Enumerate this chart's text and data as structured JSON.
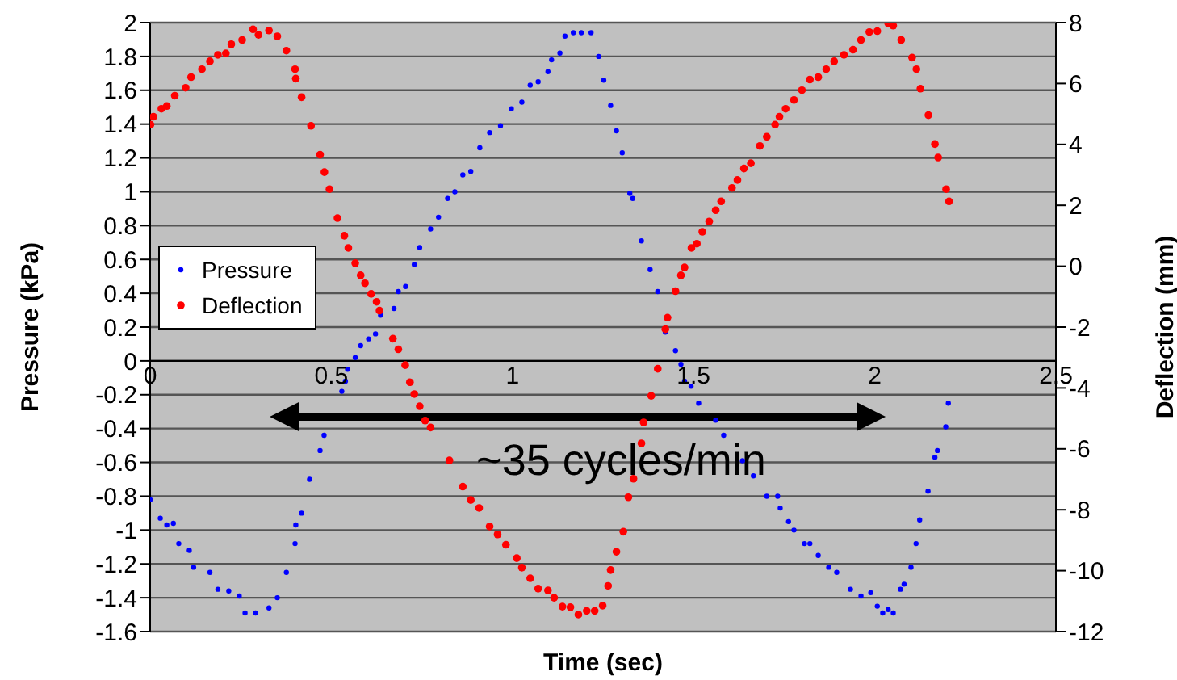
{
  "chart_data": {
    "type": "scatter",
    "xlabel": "Time (sec)",
    "ylabel": "Pressure (kPa)",
    "y2label": "Deflection (mm)",
    "xlim": [
      0,
      2.5
    ],
    "xticks": [
      0,
      0.5,
      1,
      1.5,
      2,
      2.5
    ],
    "ylim": [
      -1.6,
      2
    ],
    "yticks": [
      -1.6,
      -1.4,
      -1.2,
      -1,
      -0.8,
      -0.6,
      -0.4,
      -0.2,
      0,
      0.2,
      0.4,
      0.6,
      0.8,
      1,
      1.2,
      1.4,
      1.6,
      1.8,
      2
    ],
    "y2lim": [
      -12,
      8
    ],
    "y2ticks": [
      -12,
      -10,
      -8,
      -6,
      -4,
      -2,
      0,
      2,
      4,
      6,
      8
    ],
    "grid": "y",
    "legend": "left",
    "marker": "circle",
    "annotations": [
      "~35 cycles/min"
    ],
    "series": [
      {
        "name": "Pressure",
        "color": "#0000ff",
        "x": [
          0,
          0.028,
          0.046,
          0.064,
          0.079,
          0.108,
          0.12,
          0.165,
          0.187,
          0.217,
          0.246,
          0.262,
          0.291,
          0.328,
          0.351,
          0.376,
          0.4,
          0.402,
          0.418,
          0.44,
          0.469,
          0.48,
          0.529,
          0.539,
          0.545,
          0.566,
          0.581,
          0.603,
          0.622,
          0.636,
          0.673,
          0.685,
          0.705,
          0.729,
          0.744,
          0.774,
          0.796,
          0.821,
          0.841,
          0.863,
          0.885,
          0.91,
          0.937,
          0.967,
          0.997,
          1.026,
          1.049,
          1.071,
          1.098,
          1.108,
          1.131,
          1.145,
          1.168,
          1.19,
          1.217,
          1.238,
          1.252,
          1.271,
          1.287,
          1.303,
          1.324,
          1.332,
          1.356,
          1.38,
          1.401,
          1.422,
          1.45,
          1.465,
          1.475,
          1.493,
          1.514,
          1.561,
          1.583,
          1.635,
          1.665,
          1.702,
          1.732,
          1.739,
          1.762,
          1.777,
          1.806,
          1.821,
          1.844,
          1.873,
          1.895,
          1.933,
          1.962,
          1.989,
          2.007,
          2.022,
          2.037,
          2.051,
          2.071,
          2.081,
          2.1,
          2.114,
          2.124,
          2.147,
          2.166,
          2.173,
          2.196,
          2.203
        ],
        "values": [
          -0.82,
          -0.93,
          -0.97,
          -0.96,
          -1.08,
          -1.12,
          -1.22,
          -1.25,
          -1.35,
          -1.36,
          -1.39,
          -1.49,
          -1.49,
          -1.46,
          -1.4,
          -1.25,
          -1.08,
          -0.97,
          -0.9,
          -0.7,
          -0.53,
          -0.44,
          -0.18,
          -0.12,
          -0.05,
          0.02,
          0.09,
          0.13,
          0.16,
          0.27,
          0.31,
          0.41,
          0.44,
          0.57,
          0.67,
          0.78,
          0.85,
          0.96,
          1,
          1.1,
          1.12,
          1.26,
          1.35,
          1.39,
          1.49,
          1.53,
          1.63,
          1.65,
          1.71,
          1.78,
          1.82,
          1.92,
          1.94,
          1.94,
          1.94,
          1.8,
          1.66,
          1.51,
          1.36,
          1.23,
          0.99,
          0.96,
          0.71,
          0.54,
          0.41,
          0.17,
          0.06,
          -0.02,
          -0.12,
          -0.15,
          -0.25,
          -0.35,
          -0.44,
          -0.59,
          -0.68,
          -0.8,
          -0.8,
          -0.87,
          -0.95,
          -1,
          -1.08,
          -1.08,
          -1.15,
          -1.22,
          -1.25,
          -1.35,
          -1.39,
          -1.37,
          -1.45,
          -1.49,
          -1.47,
          -1.49,
          -1.35,
          -1.32,
          -1.22,
          -1.08,
          -0.94,
          -0.77,
          -0.57,
          -0.53,
          -0.39,
          -0.25
        ]
      },
      {
        "name": "Deflection",
        "color": "#ff0000",
        "axis": "y2",
        "x": [
          0.001,
          0.009,
          0.031,
          0.046,
          0.068,
          0.098,
          0.113,
          0.143,
          0.165,
          0.187,
          0.209,
          0.224,
          0.254,
          0.284,
          0.299,
          0.328,
          0.351,
          0.376,
          0.4,
          0.402,
          0.418,
          0.444,
          0.469,
          0.481,
          0.495,
          0.517,
          0.536,
          0.547,
          0.566,
          0.581,
          0.593,
          0.61,
          0.625,
          0.633,
          0.67,
          0.685,
          0.704,
          0.717,
          0.729,
          0.744,
          0.759,
          0.774,
          0.826,
          0.863,
          0.885,
          0.908,
          0.937,
          0.959,
          0.982,
          1.012,
          1.026,
          1.049,
          1.071,
          1.098,
          1.115,
          1.138,
          1.16,
          1.182,
          1.205,
          1.227,
          1.249,
          1.264,
          1.271,
          1.287,
          1.306,
          1.32,
          1.334,
          1.356,
          1.362,
          1.383,
          1.401,
          1.422,
          1.428,
          1.45,
          1.465,
          1.475,
          1.494,
          1.509,
          1.524,
          1.543,
          1.561,
          1.576,
          1.606,
          1.621,
          1.639,
          1.658,
          1.683,
          1.702,
          1.725,
          1.737,
          1.754,
          1.777,
          1.799,
          1.821,
          1.844,
          1.866,
          1.888,
          1.915,
          1.94,
          1.962,
          1.985,
          2.007,
          2.037,
          2.051,
          2.073,
          2.103,
          2.115,
          2.126,
          2.148,
          2.166,
          2.175,
          2.197,
          2.205
        ],
        "values": [
          4.65,
          4.91,
          5.17,
          5.26,
          5.6,
          5.86,
          6.21,
          6.47,
          6.73,
          6.94,
          6.99,
          7.29,
          7.43,
          7.78,
          7.6,
          7.74,
          7.55,
          7.08,
          6.47,
          6.16,
          5.55,
          4.61,
          3.66,
          3.09,
          2.53,
          1.58,
          1,
          0.6,
          0.1,
          -0.3,
          -0.56,
          -0.91,
          -1.17,
          -1.46,
          -2.38,
          -2.73,
          -3.25,
          -3.81,
          -4.2,
          -4.6,
          -5.07,
          -5.3,
          -6.38,
          -7.24,
          -7.68,
          -7.94,
          -8.55,
          -8.81,
          -9.15,
          -9.59,
          -9.9,
          -10.25,
          -10.59,
          -10.65,
          -10.89,
          -11.18,
          -11.2,
          -11.44,
          -11.32,
          -11.32,
          -11.15,
          -10.5,
          -9.98,
          -9.38,
          -8.72,
          -7.59,
          -6.98,
          -5.82,
          -5.13,
          -4.26,
          -3.37,
          -2.07,
          -1.69,
          -0.82,
          -0.3,
          -0.04,
          0.6,
          0.74,
          1.13,
          1.47,
          1.84,
          2.13,
          2.57,
          2.83,
          3.21,
          3.38,
          3.95,
          4.25,
          4.65,
          4.91,
          5.17,
          5.46,
          5.78,
          6.13,
          6.21,
          6.47,
          6.73,
          6.94,
          7.11,
          7.43,
          7.69,
          7.72,
          7.98,
          7.9,
          7.43,
          6.85,
          6.47,
          5.83,
          4.96,
          4.01,
          3.57,
          2.53,
          2.13
        ]
      }
    ]
  }
}
